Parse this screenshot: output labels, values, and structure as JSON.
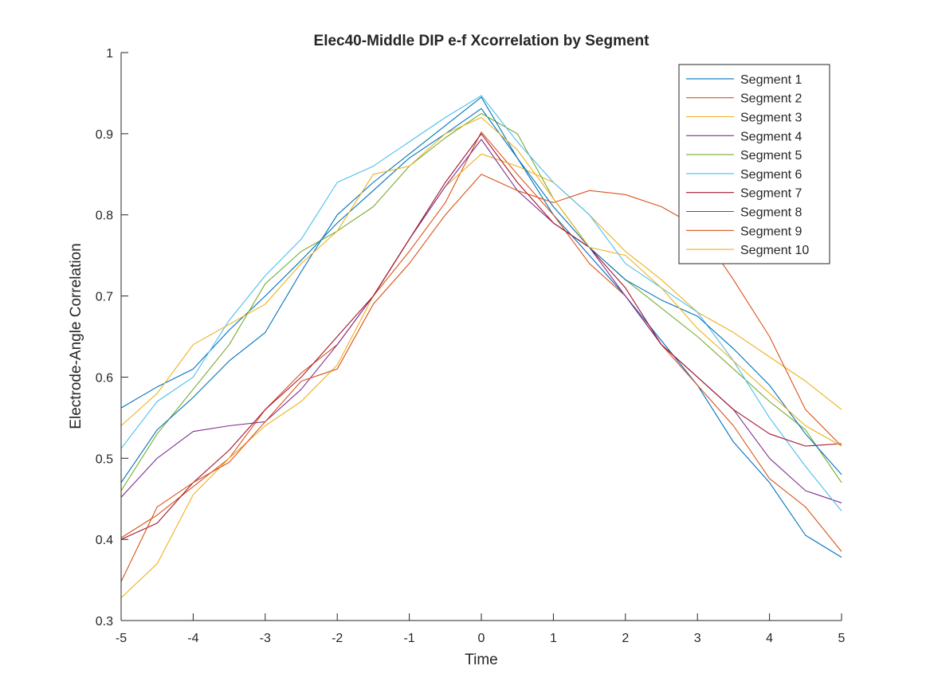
{
  "chart_data": {
    "type": "line",
    "title": "Elec40-Middle DIP e-f Xcorrelation by Segment",
    "xlabel": "Time",
    "ylabel": "Electrode-Angle Correlation",
    "xlim": [
      -5,
      5
    ],
    "ylim": [
      0.3,
      1
    ],
    "xticks": [
      "-5",
      "-4",
      "-3",
      "-2",
      "-1",
      "0",
      "1",
      "2",
      "3",
      "4",
      "5"
    ],
    "yticks": [
      "0.3",
      "0.4",
      "0.5",
      "0.6",
      "0.7",
      "0.8",
      "0.9",
      "1"
    ],
    "grid": false,
    "legend_position": "top-right",
    "x": [
      -5,
      -4.5,
      -4,
      -3.5,
      -3,
      -2.5,
      -2,
      -1.5,
      -1,
      -0.5,
      0,
      0.5,
      1,
      1.5,
      2,
      2.5,
      3,
      3.5,
      4,
      4.5,
      5
    ],
    "series": [
      {
        "name": "Segment 1",
        "color": "#0072BD",
        "values": [
          0.562,
          0.588,
          0.61,
          0.658,
          0.7,
          0.744,
          0.79,
          0.83,
          0.87,
          0.9,
          0.931,
          0.87,
          0.8,
          0.75,
          0.7,
          0.645,
          0.59,
          0.52,
          0.47,
          0.405,
          0.378
        ]
      },
      {
        "name": "Segment 2",
        "color": "#D95319",
        "values": [
          0.402,
          0.43,
          0.465,
          0.5,
          0.56,
          0.605,
          0.64,
          0.7,
          0.755,
          0.815,
          0.902,
          0.85,
          0.8,
          0.74,
          0.7,
          0.64,
          0.59,
          0.54,
          0.475,
          0.44,
          0.385
        ]
      },
      {
        "name": "Segment 3",
        "color": "#EDB120",
        "values": [
          0.328,
          0.37,
          0.455,
          0.5,
          0.54,
          0.57,
          0.615,
          0.7,
          0.77,
          0.835,
          0.875,
          0.86,
          0.84,
          0.8,
          0.755,
          0.72,
          0.68,
          0.655,
          0.625,
          0.595,
          0.56
        ]
      },
      {
        "name": "Segment 4",
        "color": "#7E2F8E",
        "values": [
          0.452,
          0.5,
          0.533,
          0.54,
          0.545,
          0.585,
          0.64,
          0.7,
          0.77,
          0.835,
          0.893,
          0.83,
          0.79,
          0.76,
          0.7,
          0.64,
          0.6,
          0.56,
          0.5,
          0.46,
          0.445
        ]
      },
      {
        "name": "Segment 5",
        "color": "#77AC30",
        "values": [
          0.46,
          0.53,
          0.585,
          0.64,
          0.715,
          0.755,
          0.78,
          0.81,
          0.86,
          0.895,
          0.925,
          0.9,
          0.82,
          0.76,
          0.72,
          0.685,
          0.65,
          0.61,
          0.57,
          0.535,
          0.47
        ]
      },
      {
        "name": "Segment 6",
        "color": "#4DBEEE",
        "values": [
          0.512,
          0.57,
          0.6,
          0.67,
          0.725,
          0.77,
          0.84,
          0.86,
          0.89,
          0.92,
          0.947,
          0.89,
          0.84,
          0.8,
          0.74,
          0.71,
          0.68,
          0.62,
          0.55,
          0.49,
          0.435
        ]
      },
      {
        "name": "Segment 7",
        "color": "#A2142F",
        "values": [
          0.4,
          0.42,
          0.47,
          0.51,
          0.56,
          0.6,
          0.65,
          0.7,
          0.77,
          0.84,
          0.9,
          0.84,
          0.79,
          0.76,
          0.71,
          0.64,
          0.6,
          0.56,
          0.53,
          0.515,
          0.518
        ]
      },
      {
        "name": "Segment 8",
        "color": "#0072BD",
        "values": [
          0.47,
          0.535,
          0.575,
          0.62,
          0.655,
          0.73,
          0.8,
          0.84,
          0.875,
          0.91,
          0.945,
          0.87,
          0.81,
          0.76,
          0.72,
          0.695,
          0.675,
          0.635,
          0.59,
          0.53,
          0.48
        ]
      },
      {
        "name": "Segment 9",
        "color": "#D95319",
        "values": [
          0.348,
          0.44,
          0.47,
          0.495,
          0.545,
          0.595,
          0.61,
          0.69,
          0.74,
          0.8,
          0.85,
          0.83,
          0.815,
          0.83,
          0.825,
          0.81,
          0.785,
          0.72,
          0.65,
          0.56,
          0.515
        ]
      },
      {
        "name": "Segment 10",
        "color": "#EDB120",
        "values": [
          0.54,
          0.58,
          0.64,
          0.665,
          0.69,
          0.74,
          0.78,
          0.85,
          0.86,
          0.9,
          0.92,
          0.88,
          0.82,
          0.76,
          0.75,
          0.71,
          0.66,
          0.62,
          0.58,
          0.54,
          0.515
        ]
      }
    ]
  }
}
